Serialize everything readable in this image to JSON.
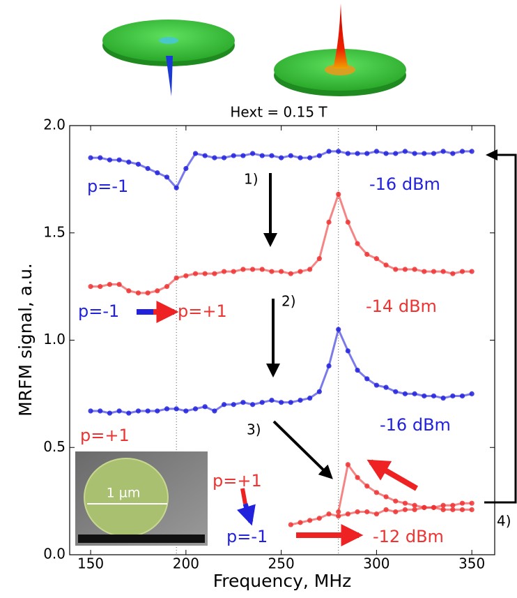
{
  "chart_data": {
    "type": "line",
    "title": "Hext = 0.15 T",
    "xlabel": "Frequency, MHz",
    "ylabel": "MRFM signal, a.u.",
    "x": [
      150,
      155,
      160,
      165,
      170,
      175,
      180,
      185,
      190,
      195,
      200,
      205,
      210,
      215,
      220,
      225,
      230,
      235,
      240,
      245,
      250,
      255,
      260,
      265,
      270,
      275,
      280,
      285,
      290,
      295,
      300,
      305,
      310,
      315,
      320,
      325,
      330,
      335,
      340,
      345,
      350
    ],
    "series": [
      {
        "name": "-16 dBm",
        "color": "#2222dd",
        "values": [
          1.85,
          1.85,
          1.84,
          1.84,
          1.83,
          1.82,
          1.8,
          1.78,
          1.76,
          1.71,
          1.8,
          1.87,
          1.86,
          1.85,
          1.85,
          1.86,
          1.86,
          1.87,
          1.86,
          1.86,
          1.85,
          1.86,
          1.85,
          1.85,
          1.86,
          1.88,
          1.88,
          1.87,
          1.87,
          1.87,
          1.88,
          1.87,
          1.87,
          1.88,
          1.87,
          1.87,
          1.87,
          1.88,
          1.87,
          1.88,
          1.88
        ]
      },
      {
        "name": "-14 dBm",
        "color": "#ee3333",
        "values": [
          1.25,
          1.25,
          1.26,
          1.26,
          1.23,
          1.22,
          1.22,
          1.23,
          1.25,
          1.29,
          1.3,
          1.31,
          1.31,
          1.31,
          1.32,
          1.32,
          1.33,
          1.33,
          1.33,
          1.32,
          1.32,
          1.31,
          1.32,
          1.33,
          1.38,
          1.55,
          1.68,
          1.55,
          1.45,
          1.4,
          1.38,
          1.35,
          1.33,
          1.33,
          1.33,
          1.32,
          1.32,
          1.32,
          1.31,
          1.32,
          1.32
        ]
      },
      {
        "name": "-16 dBm",
        "color": "#2222dd",
        "values": [
          0.67,
          0.67,
          0.66,
          0.67,
          0.66,
          0.67,
          0.67,
          0.67,
          0.68,
          0.68,
          0.67,
          0.68,
          0.69,
          0.67,
          0.7,
          0.7,
          0.71,
          0.7,
          0.71,
          0.72,
          0.71,
          0.71,
          0.72,
          0.73,
          0.76,
          0.88,
          1.05,
          0.95,
          0.86,
          0.82,
          0.79,
          0.78,
          0.76,
          0.75,
          0.75,
          0.74,
          0.74,
          0.73,
          0.74,
          0.74,
          0.75
        ]
      },
      {
        "name": "-12 dBm",
        "color": "#ee3333",
        "values": [
          null,
          null,
          null,
          null,
          null,
          null,
          null,
          null,
          null,
          null,
          null,
          null,
          null,
          null,
          null,
          null,
          null,
          null,
          null,
          null,
          null,
          0.14,
          0.15,
          0.16,
          0.17,
          0.19,
          0.18,
          0.19,
          0.2,
          0.2,
          0.19,
          0.21,
          0.2,
          0.21,
          0.21,
          0.22,
          0.22,
          0.23,
          0.23,
          0.24,
          0.24
        ]
      },
      {
        "color": "#ee3333",
        "values": [
          null,
          null,
          null,
          null,
          null,
          null,
          null,
          null,
          null,
          null,
          null,
          null,
          null,
          null,
          null,
          null,
          null,
          null,
          null,
          null,
          null,
          null,
          null,
          null,
          null,
          null,
          0.2,
          0.42,
          0.36,
          0.32,
          0.29,
          0.27,
          0.25,
          0.24,
          0.23,
          0.22,
          0.22,
          0.21,
          0.21,
          0.21,
          0.21
        ]
      }
    ],
    "xlim": [
      139,
      362
    ],
    "ylim": [
      0,
      2
    ],
    "xticks": [
      150,
      200,
      250,
      300,
      350
    ],
    "yticks": [
      {
        "value": 0,
        "label": "0.0"
      },
      0.5,
      {
        "value": 1,
        "label": "1.0"
      },
      1.5,
      {
        "value": 2,
        "label": "2.0"
      }
    ],
    "vlines": [
      195,
      280
    ],
    "annotations": [
      {
        "text": "p=-1",
        "color": "#2222dd"
      },
      {
        "text": "p=-1",
        "color": "#2222dd"
      },
      {
        "text": "p=+1",
        "color": "#ee3333"
      },
      {
        "text": "p=+1",
        "color": "#ee3333"
      },
      {
        "text": "p=+1",
        "color": "#ee3333"
      },
      {
        "text": "p=-1",
        "color": "#2222dd"
      }
    ],
    "steps": [
      "1)",
      "2)",
      "3)",
      "4)"
    ],
    "inset_label": "1 µm"
  }
}
